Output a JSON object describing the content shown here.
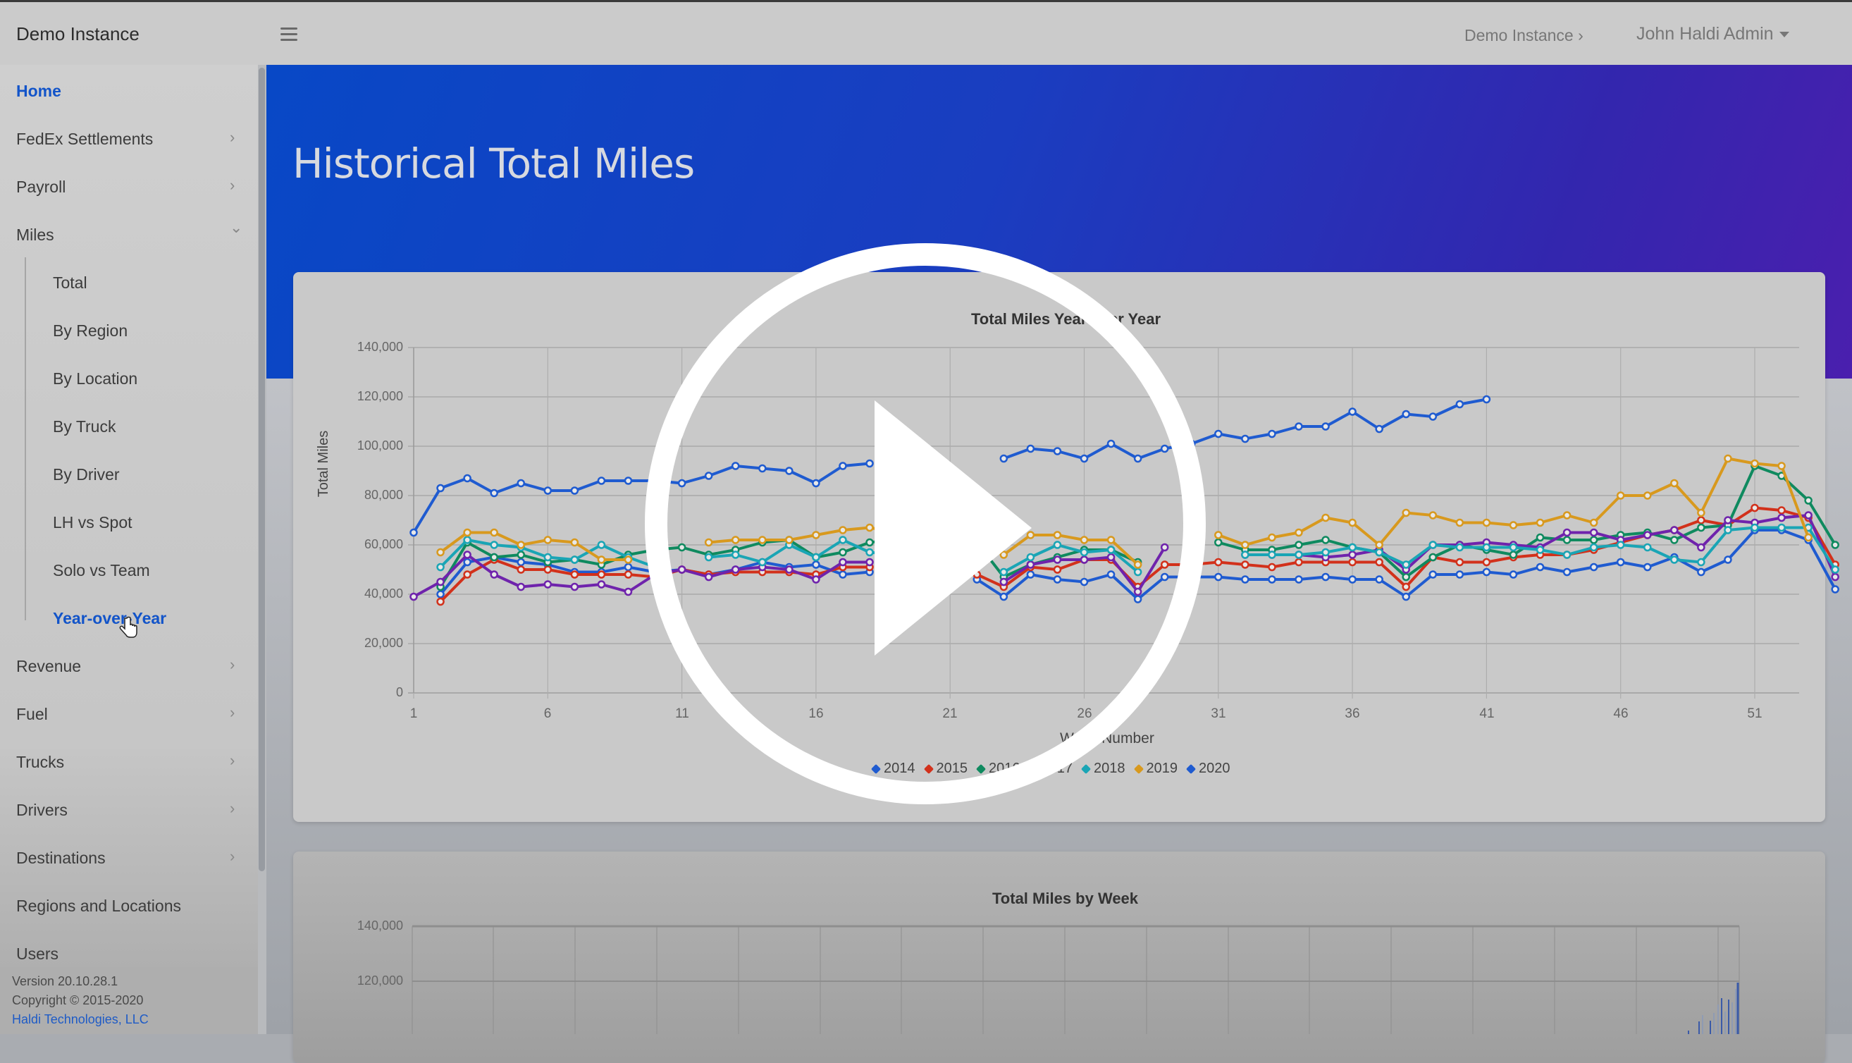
{
  "topbar": {
    "brand": "Demo Instance",
    "breadcrumb": "Demo Instance ›",
    "user": "John Haldi Admin"
  },
  "sidebar": {
    "items": [
      {
        "label": "Home",
        "active": true
      },
      {
        "label": "FedEx Settlements",
        "chevron": "›"
      },
      {
        "label": "Payroll",
        "chevron": "›"
      },
      {
        "label": "Miles",
        "chevron": "⌄"
      },
      {
        "label": "Revenue",
        "chevron": "›"
      },
      {
        "label": "Fuel",
        "chevron": "›"
      },
      {
        "label": "Trucks",
        "chevron": "›"
      },
      {
        "label": "Drivers",
        "chevron": "›"
      },
      {
        "label": "Destinations",
        "chevron": "›"
      },
      {
        "label": "Regions and Locations"
      },
      {
        "label": "Users"
      }
    ],
    "miles_sub": [
      {
        "label": "Total"
      },
      {
        "label": "By Region"
      },
      {
        "label": "By Location"
      },
      {
        "label": "By Truck"
      },
      {
        "label": "By Driver"
      },
      {
        "label": "LH vs Spot"
      },
      {
        "label": "Solo vs Team"
      },
      {
        "label": "Year-over-Year",
        "active": true
      }
    ],
    "footer": {
      "version": "Version 20.10.28.1",
      "copyright": "Copyright © 2015-2020",
      "company": "Haldi Technologies, LLC"
    }
  },
  "page": {
    "title": "Historical Total Miles"
  },
  "colors": {
    "accent": "#1254c9",
    "banner_start": "#0848c6",
    "banner_end": "#4a1fae"
  },
  "chart_data": [
    {
      "type": "line",
      "title": "Total Miles Year over Year",
      "xlabel": "Week Number",
      "ylabel": "Total Miles",
      "ylim": [
        0,
        140000
      ],
      "yticks": [
        "0",
        "20,000",
        "40,000",
        "60,000",
        "80,000",
        "100,000",
        "120,000",
        "140,000"
      ],
      "xticks": [
        "1",
        "6",
        "11",
        "16",
        "21",
        "26",
        "31",
        "36",
        "41",
        "46",
        "51"
      ],
      "grid": true,
      "legend_position": "bottom",
      "series": [
        {
          "name": "2014",
          "color": "#1f5bd0",
          "values": [
            null,
            40000,
            53000,
            55000,
            53000,
            52000,
            49000,
            49000,
            51000,
            49000,
            50000,
            48000,
            50000,
            53000,
            51000,
            52000,
            48000,
            49000,
            null,
            null,
            null,
            46000,
            39000,
            48000,
            46000,
            45000,
            48000,
            38000,
            47000,
            47000,
            47000,
            46000,
            46000,
            46000,
            47000,
            46000,
            46000,
            39000,
            48000,
            48000,
            49000,
            48000,
            51000,
            49000,
            51000,
            53000,
            51000,
            55000,
            49000,
            54000,
            66000,
            66000,
            62000,
            42000
          ]
        },
        {
          "name": "2015",
          "color": "#d2311b",
          "values": [
            null,
            37000,
            48000,
            54000,
            50000,
            50000,
            48000,
            48000,
            48000,
            47000,
            50000,
            48000,
            49000,
            49000,
            49000,
            48000,
            51000,
            51000,
            null,
            null,
            null,
            48000,
            43000,
            51000,
            50000,
            54000,
            54000,
            43000,
            52000,
            52000,
            53000,
            52000,
            51000,
            53000,
            53000,
            53000,
            53000,
            43000,
            55000,
            53000,
            53000,
            55000,
            56000,
            56000,
            58000,
            61000,
            64000,
            66000,
            70000,
            68000,
            75000,
            74000,
            71000,
            52000
          ]
        },
        {
          "name": "2016",
          "color": "#0f8a5f",
          "values": [
            null,
            43000,
            61000,
            55000,
            56000,
            53000,
            54000,
            52000,
            56000,
            58000,
            59000,
            56000,
            58000,
            61000,
            62000,
            55000,
            57000,
            61000,
            62000,
            null,
            null,
            61000,
            47000,
            52000,
            55000,
            58000,
            58000,
            53000,
            null,
            null,
            61000,
            58000,
            58000,
            60000,
            62000,
            59000,
            57000,
            47000,
            55000,
            60000,
            58000,
            56000,
            63000,
            62000,
            62000,
            64000,
            65000,
            62000,
            67000,
            68000,
            92000,
            88000,
            78000,
            60000
          ]
        },
        {
          "name": "2017",
          "color": "#6f23ac",
          "values": [
            39000,
            45000,
            56000,
            48000,
            43000,
            44000,
            43000,
            44000,
            41000,
            48000,
            50000,
            47000,
            50000,
            51000,
            50000,
            46000,
            53000,
            53000,
            null,
            null,
            null,
            null,
            45000,
            52000,
            54000,
            54000,
            55000,
            41000,
            59000,
            null,
            null,
            56000,
            56000,
            56000,
            55000,
            56000,
            58000,
            50000,
            60000,
            60000,
            61000,
            60000,
            59000,
            65000,
            65000,
            62000,
            64000,
            66000,
            59000,
            70000,
            69000,
            71000,
            72000,
            47000
          ]
        },
        {
          "name": "2018",
          "color": "#1aa5b5",
          "values": [
            null,
            51000,
            62000,
            60000,
            59000,
            55000,
            54000,
            60000,
            55000,
            51000,
            null,
            55000,
            56000,
            53000,
            60000,
            55000,
            62000,
            57000,
            56000,
            null,
            null,
            null,
            49000,
            55000,
            60000,
            57000,
            58000,
            49000,
            null,
            null,
            null,
            56000,
            56000,
            56000,
            57000,
            59000,
            57000,
            52000,
            60000,
            59000,
            59000,
            59000,
            58000,
            56000,
            59000,
            60000,
            59000,
            54000,
            53000,
            66000,
            67000,
            67000,
            67000,
            50000
          ]
        },
        {
          "name": "2019",
          "color": "#d8991e",
          "values": [
            null,
            57000,
            65000,
            65000,
            60000,
            62000,
            61000,
            54000,
            54000,
            null,
            null,
            61000,
            62000,
            62000,
            62000,
            64000,
            66000,
            67000,
            65000,
            null,
            null,
            null,
            56000,
            64000,
            64000,
            62000,
            62000,
            52000,
            null,
            null,
            64000,
            60000,
            63000,
            65000,
            71000,
            69000,
            60000,
            73000,
            72000,
            69000,
            69000,
            68000,
            69000,
            72000,
            69000,
            80000,
            80000,
            85000,
            73000,
            95000,
            93000,
            92000,
            63000,
            null
          ]
        },
        {
          "name": "2020",
          "color": "#1f5bd0",
          "values": [
            65000,
            83000,
            87000,
            81000,
            85000,
            82000,
            82000,
            86000,
            86000,
            86000,
            85000,
            88000,
            92000,
            91000,
            90000,
            85000,
            92000,
            93000,
            null,
            null,
            null,
            null,
            95000,
            99000,
            98000,
            95000,
            101000,
            95000,
            99000,
            101000,
            105000,
            103000,
            105000,
            108000,
            108000,
            114000,
            107000,
            113000,
            112000,
            117000,
            119000,
            null,
            null,
            null,
            null,
            null,
            null,
            null,
            null,
            null,
            null,
            null,
            null,
            null
          ]
        }
      ]
    },
    {
      "type": "bar",
      "title": "Total Miles by Week",
      "yticks": [
        "120,000",
        "140,000"
      ],
      "ylim": [
        0,
        140000
      ],
      "grid": true
    }
  ],
  "video_overlay": {
    "icon": "play-icon"
  }
}
